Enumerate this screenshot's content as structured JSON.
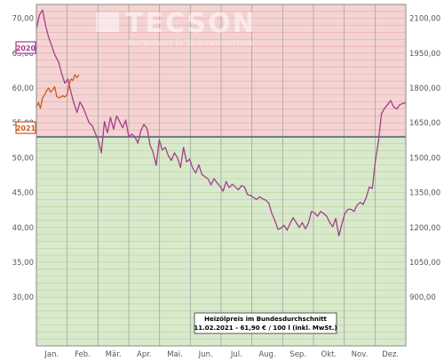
{
  "chart_data": {
    "type": "line",
    "watermark": {
      "title": "TECSON",
      "subtitle": "Kompetenz in Tankmesstechnik"
    },
    "note": {
      "line1": "Heizölpreis im Bundesdurchschnitt",
      "line2": "11.02.2021 - 61,90 € / 100 l (inkl. MwSt.)"
    },
    "left_axis": {
      "ylim": [
        23,
        72
      ],
      "ticks": [
        "30,00",
        "35,00",
        "40,00",
        "45,00",
        "50,00",
        "55,00",
        "60,00",
        "65,00",
        "70,00"
      ],
      "tick_values": [
        30,
        35,
        40,
        45,
        50,
        55,
        60,
        65,
        70
      ]
    },
    "right_axis": {
      "ticks": [
        "900,00",
        "1050,00",
        "1200,00",
        "1350,00",
        "1500,00",
        "1650,00",
        "1800,00",
        "1950,00",
        "2100,00"
      ],
      "tick_values": [
        30,
        35,
        40,
        45,
        50,
        55,
        60,
        65,
        70
      ]
    },
    "months": [
      "Jan.",
      "Feb.",
      "Mär.",
      "Apr.",
      "Mai.",
      "Jun.",
      "Jul.",
      "Aug.",
      "Sep.",
      "Okt.",
      "Nov.",
      "Dez."
    ],
    "threshold": 53,
    "zones": {
      "above_color": "#f4d3d3",
      "below_color": "#d9e9cc",
      "threshold_color": "#6b7a8c"
    },
    "series": [
      {
        "name": "2020",
        "color": "#a0408a",
        "x": [
          0,
          3,
          6,
          9,
          12,
          15,
          18,
          22,
          25,
          28,
          31,
          34,
          37,
          40,
          43,
          46,
          49,
          52,
          55,
          58,
          61,
          64,
          67,
          70,
          73,
          76,
          79,
          82,
          85,
          88,
          91,
          94,
          97,
          100,
          103,
          106,
          109,
          112,
          115,
          118,
          121,
          124,
          127,
          130,
          133,
          136,
          139,
          142,
          145,
          148,
          151,
          154,
          157,
          160,
          163,
          166,
          169,
          172,
          175,
          178,
          181,
          184,
          187,
          190,
          193,
          196,
          199,
          202,
          205,
          208,
          211,
          214,
          217,
          220,
          223,
          226,
          229,
          232,
          235,
          238,
          241,
          244,
          247,
          250,
          253,
          256,
          259,
          262,
          265,
          268,
          271,
          274,
          277,
          280,
          283,
          286,
          289,
          292,
          295,
          298,
          301,
          304,
          307,
          310,
          313,
          316,
          319,
          322,
          325,
          328,
          331,
          334,
          337,
          340,
          343,
          346,
          349,
          352,
          355,
          358,
          361,
          364
        ],
        "values": [
          68.5,
          70.5,
          71.2,
          69.0,
          67.3,
          66.1,
          64.8,
          63.7,
          62.0,
          60.7,
          61.3,
          59.4,
          57.8,
          56.5,
          58.0,
          57.2,
          56.1,
          55.0,
          54.6,
          53.5,
          52.5,
          50.7,
          55.2,
          53.6,
          55.8,
          54.1,
          56.0,
          55.2,
          54.3,
          55.4,
          53.0,
          53.4,
          53.0,
          52.1,
          53.9,
          54.8,
          54.2,
          51.8,
          50.8,
          48.9,
          52.6,
          51.1,
          51.5,
          50.3,
          49.6,
          50.7,
          50.0,
          48.6,
          51.5,
          49.4,
          49.8,
          48.5,
          47.8,
          49.0,
          47.6,
          47.3,
          47.0,
          46.1,
          47.0,
          46.4,
          45.9,
          45.2,
          46.6,
          45.7,
          46.2,
          45.8,
          45.4,
          46.0,
          45.8,
          44.7,
          44.6,
          44.3,
          44.0,
          44.4,
          44.1,
          43.9,
          43.5,
          42.0,
          41.0,
          39.7,
          39.9,
          40.3,
          39.6,
          40.6,
          41.4,
          40.7,
          40.0,
          40.7,
          39.8,
          40.6,
          42.3,
          42.1,
          41.6,
          42.3,
          42.0,
          41.6,
          40.7,
          40.1,
          41.3,
          38.8,
          40.5,
          42.0,
          42.6,
          42.6,
          42.3,
          43.2,
          43.6,
          43.3,
          44.3,
          45.8,
          45.6,
          49.5,
          52.3,
          56.3,
          57.1,
          57.6,
          58.2,
          57.3,
          57.0,
          57.6,
          57.8,
          57.9
        ]
      },
      {
        "name": "2021",
        "color": "#cc5a1e",
        "x": [
          0,
          2,
          4,
          6,
          8,
          10,
          12,
          14,
          16,
          18,
          20,
          22,
          24,
          26,
          28,
          30,
          32,
          34,
          36,
          38,
          40,
          42
        ],
        "values": [
          57.3,
          57.9,
          57.1,
          58.6,
          59.0,
          59.6,
          60.0,
          59.4,
          59.7,
          60.2,
          58.8,
          58.6,
          58.7,
          58.9,
          58.7,
          59.0,
          60.4,
          61.3,
          61.1,
          61.9,
          61.5,
          61.9
        ]
      }
    ]
  }
}
